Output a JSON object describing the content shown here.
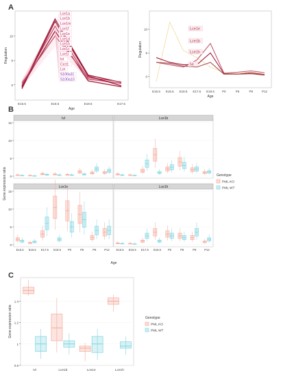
{
  "panels": {
    "a": "A",
    "b": "B",
    "c": "C"
  },
  "colors": {
    "ko": "#f4a99a",
    "wt": "#7fd4df",
    "line_dark": "#9e1c3a",
    "line_mid": "#c2566e",
    "line_light": "#f4b4c8",
    "line_gold": "#e3b84a",
    "gene_label": "#c2185b",
    "gene_label_purple": "#7b2fb5"
  },
  "chart_data": [
    {
      "id": "A-left",
      "type": "line",
      "xlabel": "Age",
      "ylabel": "Regulation",
      "categories": [
        "E15.5",
        "E16.5",
        "E18.5",
        "E17.5"
      ],
      "ylim": [
        -2,
        14
      ],
      "yticks": [
        0,
        5,
        10
      ],
      "labels": [
        "Lce1a",
        "Lce1b",
        "Lce1m",
        "Lce1f",
        "Lce1e",
        "Lce1d",
        "Lce1h",
        "Lce1c",
        "Lce1i",
        "Ivl",
        "Crct1",
        "Lor",
        "S100a11",
        "S100a10"
      ],
      "series": [
        {
          "values": [
            -0.5,
            13.5,
            2.0,
            0.5
          ]
        },
        {
          "values": [
            0.0,
            12.0,
            1.2,
            0.3
          ]
        },
        {
          "values": [
            -0.3,
            11.0,
            0.8,
            -0.4
          ]
        },
        {
          "values": [
            0.4,
            10.0,
            1.5,
            0.6
          ]
        },
        {
          "values": [
            -0.8,
            13.0,
            1.8,
            -0.2
          ]
        }
      ]
    },
    {
      "id": "A-right",
      "type": "line",
      "xlabel": "Age",
      "ylabel": "Regulation",
      "categories": [
        "E15.5",
        "E16.5",
        "E18.5",
        "E17.5",
        "E18.5",
        "P0",
        "P6",
        "P9",
        "P12"
      ],
      "ylim": [
        -1.5,
        13
      ],
      "yticks": [
        0,
        5,
        10
      ],
      "labels": [
        "Lce1e",
        "Lce1b",
        "Lce1h",
        "Ivl"
      ],
      "series": [
        {
          "values": [
            -1.0,
            11.5,
            5.5,
            4.0,
            2.0,
            0.8,
            0.6,
            1.0,
            0.5
          ]
        },
        {
          "values": [
            3.0,
            2.5,
            2.0,
            3.5,
            7.0,
            0.7,
            0.9,
            1.2,
            0.8
          ]
        },
        {
          "values": [
            4.0,
            3.0,
            2.5,
            2.5,
            5.0,
            0.6,
            0.5,
            0.8,
            0.4
          ]
        },
        {
          "values": [
            3.0,
            2.8,
            2.2,
            2.0,
            3.0,
            0.5,
            0.5,
            0.6,
            0.3
          ]
        }
      ]
    },
    {
      "id": "B",
      "type": "box",
      "xlabel": "Age",
      "ylabel": "Gene expression ratio",
      "categories": [
        "E15.5",
        "E16.5",
        "E17.5",
        "E18.5",
        "P0",
        "P6",
        "P9",
        "P12"
      ],
      "ylim": [
        0,
        15
      ],
      "yticks": [
        0,
        5,
        10,
        15
      ],
      "legend_title": "Genotype",
      "legend": [
        "PML KO",
        "PML WT"
      ],
      "facets": [
        {
          "title": "Ivl",
          "ko": [
            0.3,
            0.2,
            0.6,
            0.5,
            0.4,
            1.2,
            0.9,
            1.0
          ],
          "wt": [
            0.2,
            0.1,
            0.4,
            0.3,
            0.3,
            0.5,
            2.0,
            1.5
          ]
        },
        {
          "title": "Lce1b",
          "ko": [
            0.5,
            0.3,
            1.5,
            6.0,
            2.0,
            4.0,
            1.8,
            1.0
          ],
          "wt": [
            0.3,
            0.2,
            3.5,
            1.0,
            2.5,
            3.0,
            2.0,
            1.2
          ]
        },
        {
          "title": "Lce1e",
          "ko": [
            1.5,
            0.5,
            3.0,
            10.5,
            9.5,
            8.5,
            2.0,
            3.5
          ],
          "wt": [
            1.0,
            0.8,
            6.0,
            1.5,
            5.0,
            7.0,
            4.0,
            4.0
          ]
        },
        {
          "title": "Lce1h",
          "ko": [
            0.4,
            0.3,
            1.0,
            3.5,
            3.0,
            2.5,
            2.0,
            0.8
          ],
          "wt": [
            0.3,
            0.2,
            2.5,
            1.0,
            2.5,
            2.0,
            3.5,
            1.5
          ]
        }
      ]
    },
    {
      "id": "C",
      "type": "box",
      "ylabel": "Gene expression ratio",
      "categories": [
        "Ivl",
        "Lce1b",
        "Lce1e",
        "Lce1h"
      ],
      "ylim": [
        0.8,
        1.62
      ],
      "yticks": [
        0.8,
        1.0,
        1.2,
        1.4
      ],
      "legend_title": "Genotype",
      "legend": [
        "PML KO",
        "PML WT"
      ],
      "ko": [
        {
          "q1": 1.47,
          "med": 1.5,
          "q3": 1.53,
          "lo": 1.45,
          "hi": 1.6
        },
        {
          "q1": 1.03,
          "med": 1.15,
          "q3": 1.28,
          "lo": 0.92,
          "hi": 1.43
        },
        {
          "q1": 0.93,
          "med": 0.96,
          "q3": 0.98,
          "lo": 0.84,
          "hi": 1.01
        },
        {
          "q1": 1.37,
          "med": 1.4,
          "q3": 1.43,
          "lo": 1.3,
          "hi": 1.46
        }
      ],
      "wt": [
        {
          "q1": 0.93,
          "med": 1.0,
          "q3": 1.07,
          "lo": 0.86,
          "hi": 1.14
        },
        {
          "q1": 0.97,
          "med": 1.0,
          "q3": 1.03,
          "lo": 0.9,
          "hi": 1.1
        },
        {
          "q1": 0.92,
          "med": 1.0,
          "q3": 1.07,
          "lo": 0.85,
          "hi": 1.14
        },
        {
          "q1": 0.96,
          "med": 0.98,
          "q3": 1.02,
          "lo": 0.9,
          "hi": 1.07
        }
      ]
    }
  ]
}
